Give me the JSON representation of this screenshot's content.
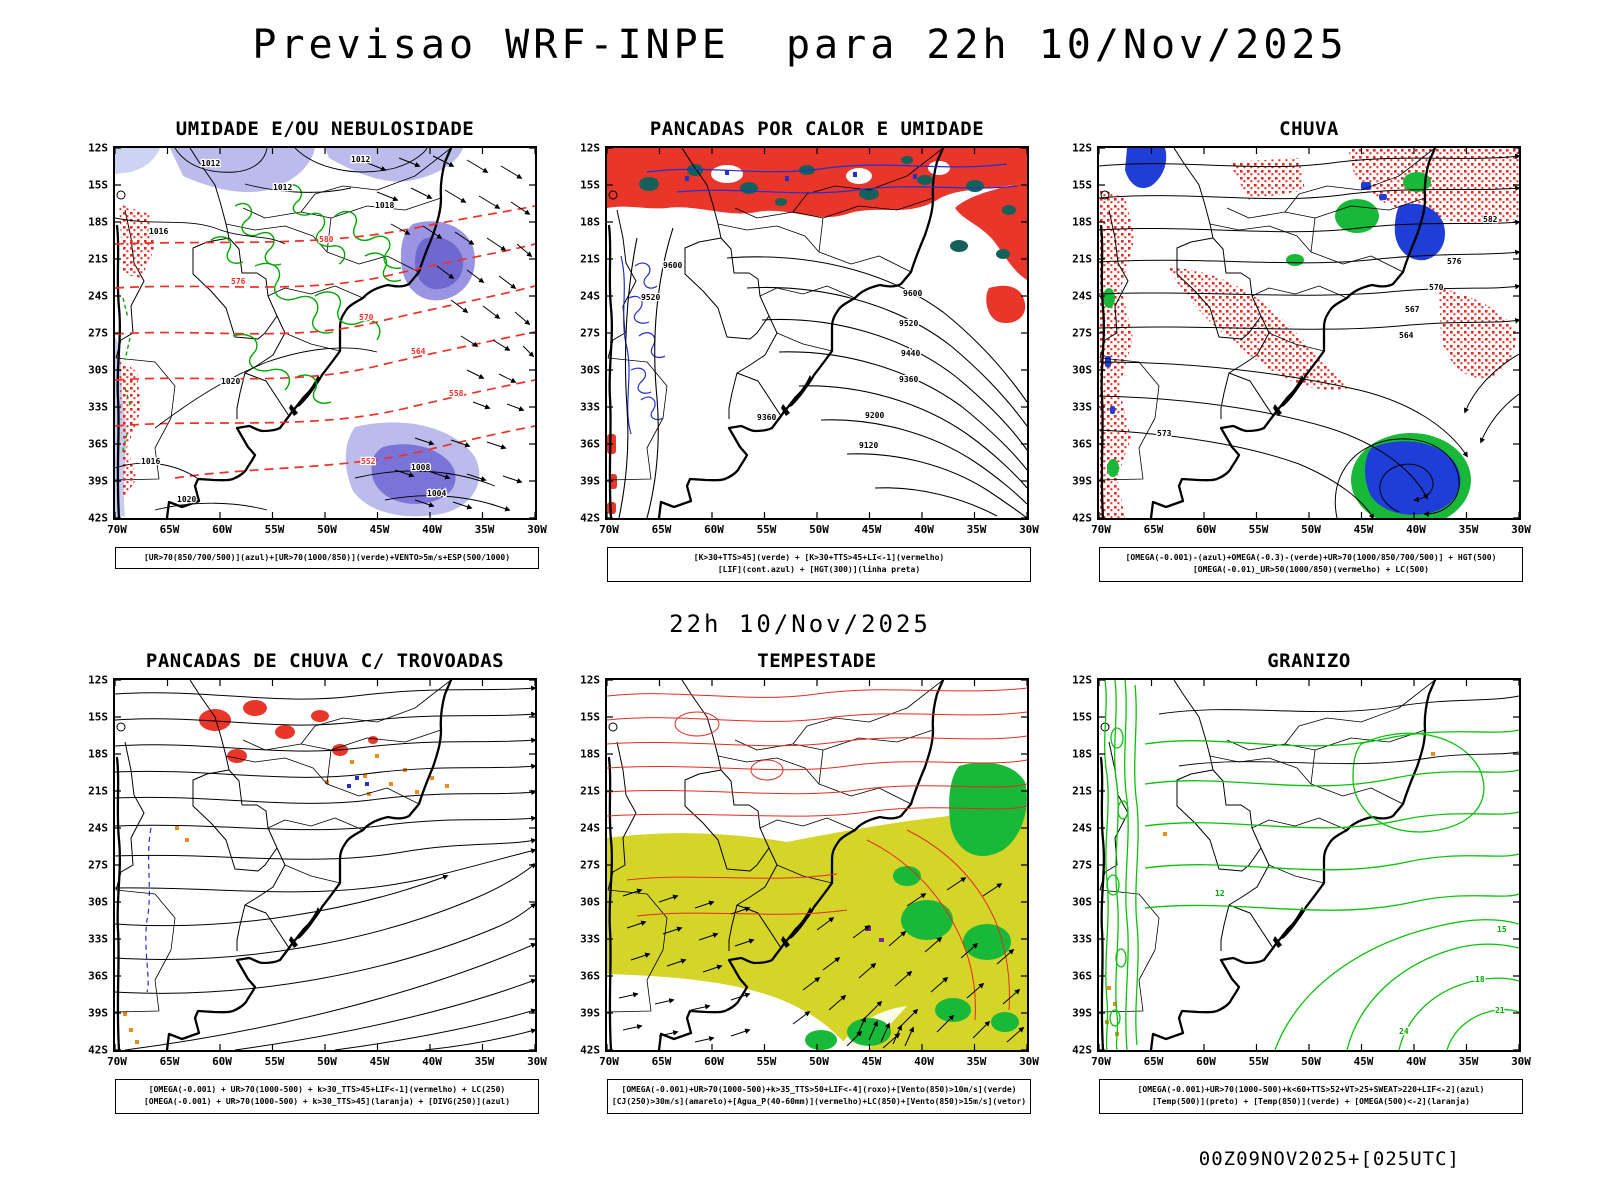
{
  "title": "Previsao WRF-INPE  para 22h 10/Nov/2025",
  "valid_time": "22h 10/Nov/2025",
  "run_info": "00Z09NOV2025+[025UTC]",
  "axes": {
    "lat": [
      "12S",
      "15S",
      "18S",
      "21S",
      "24S",
      "27S",
      "30S",
      "33S",
      "36S",
      "39S",
      "42S"
    ],
    "lon": [
      "70W",
      "65W",
      "60W",
      "55W",
      "50W",
      "45W",
      "40W",
      "35W",
      "30W"
    ]
  },
  "colors": {
    "humidity_blue": "#bcbcec",
    "humidity_purple": "#6f68cf",
    "warm_red": "#e8362a",
    "convective_teal": "#16605a",
    "rain_blue": "#2330cc",
    "rain_green": "#18b838",
    "jet_yellow": "#d4d429",
    "orange": "#f08a1e"
  },
  "panels": [
    {
      "id": "umidade",
      "title": "UMIDADE E/OU NEBULOSIDADE",
      "caption": [
        "[UR>70(850/700/500)](azul)+[UR>70(1000/850)](verde)+VENTO>5m/s+ESP(500/1000)"
      ],
      "labels": [
        "1012",
        "1012",
        "1016",
        "1012",
        "1020",
        "1008",
        "1004",
        "1016",
        "1020",
        "580",
        "576",
        "570",
        "564",
        "558",
        "552",
        "1018"
      ]
    },
    {
      "id": "pancadas-calor-umidade",
      "title": "PANCADAS POR CALOR E UMIDADE",
      "caption": [
        "[K>30+TTS>45](verde) + [K>30+TTS>45+LI<-1](vermelho)",
        "[LIF](cont.azul) + [HGT(300)](linha preta)"
      ],
      "labels": [
        "9600",
        "9520",
        "9440",
        "9360",
        "9200",
        "9120",
        "9520",
        "9600",
        "9360"
      ]
    },
    {
      "id": "chuva",
      "title": "CHUVA",
      "caption": [
        "[OMEGA(-0.001)-(azul)+OMEGA(-0.3)-(verde)+UR>70(1000/850/700/500)] + HGT(500)",
        "[OMEGA(-0.01)_UR>50(1000/850)(vermelho) + LC(500)"
      ],
      "labels": [
        "582",
        "576",
        "570",
        "567",
        "564",
        "573"
      ]
    },
    {
      "id": "pancadas-trovoadas",
      "title": "PANCADAS DE CHUVA C/ TROVOADAS",
      "caption": [
        "[OMEGA(-0.001) + UR>70(1000-500) + k>30_TTS>45+LIF<-1](vermelho) + LC(250)",
        "[OMEGA(-0.001) + UR>70(1000-500) + k>30_TTS>45](laranja) + [DIVG(250)](azul)"
      ],
      "labels": []
    },
    {
      "id": "tempestade",
      "title": "TEMPESTADE",
      "caption": [
        "[OMEGA(-0.001)+UR>70(1000-500)+k>35_TTS>50+LIF<-4](roxo)+[Vento(850)>10m/s](verde)",
        "[CJ(250)>30m/s](amarelo)+[Agua_P(40-60mm)](vermelho)+LC(850)+[Vento(850)>15m/s](vetor)"
      ],
      "labels": []
    },
    {
      "id": "granizo",
      "title": "GRANIZO",
      "caption": [
        "[OMEGA(-0.001)+UR>70(1000-500)+k<60+TTS>52+VT>25+SWEAT>220+LIF<-2](azul)",
        "[Temp(500)](preto) + [Temp(850)](verde) + [OMEGA(500)<-2](laranja)"
      ],
      "labels": [
        "12",
        "15",
        "18",
        "21",
        "24"
      ]
    }
  ]
}
